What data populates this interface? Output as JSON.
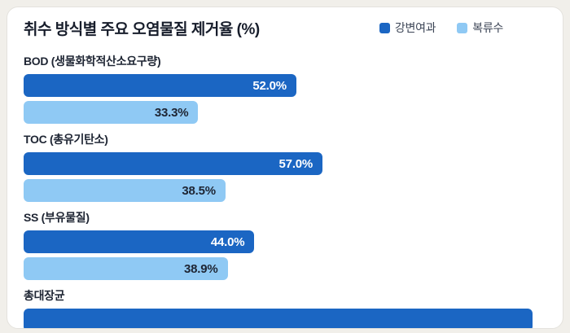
{
  "chart_data": {
    "type": "bar",
    "orientation": "horizontal",
    "title": "취수 방식별 주요 오염물질 제거율 (%)",
    "categories": [
      "BOD (생물화학적산소요구량)",
      "TOC (총유기탄소)",
      "SS (부유물질)",
      "총대장균"
    ],
    "series": [
      {
        "name": "강변여과",
        "color": "#1B66C3",
        "label_color": "#FFFFFF",
        "values": [
          52.0,
          57.0,
          44.0,
          97.0
        ],
        "labels": [
          "52.0%",
          "57.0%",
          "44.0%",
          ""
        ]
      },
      {
        "name": "복류수",
        "color": "#8FC9F4",
        "label_color": "#1E2533",
        "values": [
          33.3,
          38.5,
          38.9,
          null
        ],
        "labels": [
          "33.3%",
          "38.5%",
          "38.9%",
          null
        ]
      }
    ],
    "xlim": [
      0,
      100
    ],
    "value_labels": "inside-end",
    "legend_position": "top-right",
    "grid": false
  }
}
